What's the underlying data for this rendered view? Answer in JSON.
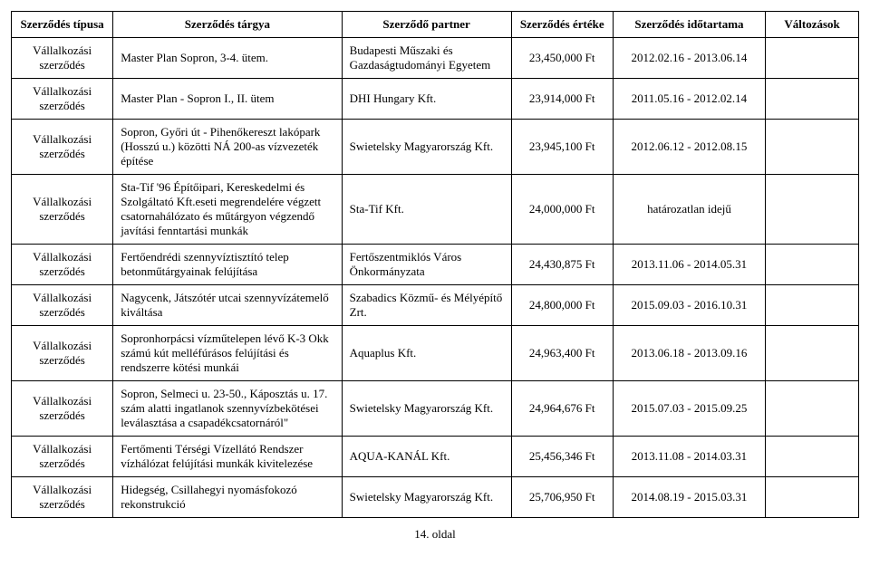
{
  "table": {
    "headers": {
      "type": "Szerződés típusa",
      "subject": "Szerződés tárgya",
      "partner": "Szerződő partner",
      "value": "Szerződés értéke",
      "period": "Szerződés időtartama",
      "changes": "Változások"
    },
    "rows": [
      {
        "type": "Vállalkozási szerződés",
        "subject": "Master Plan Sopron, 3-4. ütem.",
        "partner": "Budapesti Műszaki és Gazdaságtudományi Egyetem",
        "value": "23,450,000 Ft",
        "period": "2012.02.16 - 2013.06.14",
        "changes": ""
      },
      {
        "type": "Vállalkozási szerződés",
        "subject": "Master Plan - Sopron I., II. ütem",
        "partner": "DHI Hungary Kft.",
        "value": "23,914,000 Ft",
        "period": "2011.05.16 - 2012.02.14",
        "changes": ""
      },
      {
        "type": "Vállalkozási szerződés",
        "subject": "Sopron, Győri út - Pihenőkereszt lakópark (Hosszú u.) közötti NÁ 200-as vízvezeték építése",
        "partner": "Swietelsky Magyarország Kft.",
        "value": "23,945,100 Ft",
        "period": "2012.06.12 - 2012.08.15",
        "changes": ""
      },
      {
        "type": "Vállalkozási szerződés",
        "subject": "Sta-Tif '96 Építőipari, Kereskedelmi és Szolgáltató Kft.eseti megrendelére végzett csatornahálózato és műtárgyon végzendő javítási fenntartási munkák",
        "partner": "Sta-Tif Kft.",
        "value": "24,000,000 Ft",
        "period": "határozatlan idejű",
        "changes": ""
      },
      {
        "type": "Vállalkozási szerződés",
        "subject": "Fertőendrédi szennyvíztisztító telep betonműtárgyainak felújítása",
        "partner": "Fertőszentmiklós Város Önkormányzata",
        "value": "24,430,875 Ft",
        "period": "2013.11.06 - 2014.05.31",
        "changes": ""
      },
      {
        "type": "Vállalkozási szerződés",
        "subject": "Nagycenk, Játszótér utcai szennyvízátemelő kiváltása",
        "partner": "Szabadics Közmű- és Mélyépítő Zrt.",
        "value": "24,800,000 Ft",
        "period": "2015.09.03 - 2016.10.31",
        "changes": ""
      },
      {
        "type": "Vállalkozási szerződés",
        "subject": "Sopronhorpácsi vízműtelepen lévő K-3 Okk számú kút melléfúrásos felújítási és rendszerre kötési munkái",
        "partner": "Aquaplus Kft.",
        "value": "24,963,400 Ft",
        "period": "2013.06.18 - 2013.09.16",
        "changes": ""
      },
      {
        "type": "Vállalkozási szerződés",
        "subject": "Sopron, Selmeci u. 23-50., Káposztás u. 17. szám alatti ingatlanok szennyvízbekötései leválasztása a csapadékcsatornáról\"",
        "partner": "Swietelsky Magyarország Kft.",
        "value": "24,964,676 Ft",
        "period": "2015.07.03 - 2015.09.25",
        "changes": ""
      },
      {
        "type": "Vállalkozási szerződés",
        "subject": "Fertőmenti Térségi Vízellátó Rendszer vízhálózat felújítási munkák kivitelezése",
        "partner": "AQUA-KANÁL Kft.",
        "value": "25,456,346 Ft",
        "period": "2013.11.08 - 2014.03.31",
        "changes": ""
      },
      {
        "type": "Vállalkozási szerződés",
        "subject": "Hidegség, Csillahegyi nyomásfokozó rekonstrukció",
        "partner": "Swietelsky Magyarország Kft.",
        "value": "25,706,950 Ft",
        "period": "2014.08.19 - 2015.03.31",
        "changes": ""
      }
    ]
  },
  "page_number": "14. oldal"
}
